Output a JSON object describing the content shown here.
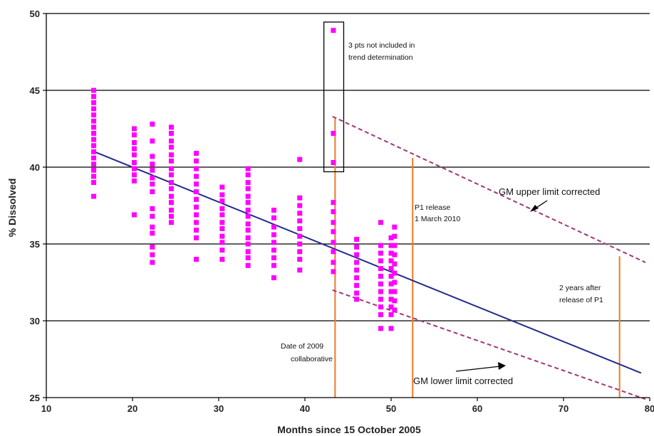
{
  "chart_data": {
    "type": "scatter",
    "title": "",
    "xlabel": "Months since  15 October 2005",
    "ylabel": "% Dissolved",
    "xlim": [
      10,
      80
    ],
    "ylim": [
      25,
      50
    ],
    "x_ticks": [
      "10",
      "20",
      "30",
      "40",
      "50",
      "60",
      "70",
      "80"
    ],
    "y_ticks": [
      "25",
      "30",
      "35",
      "40",
      "45",
      "50"
    ],
    "grid": "horizontal",
    "colors": {
      "points": "#ff00ff",
      "trend": "#1f2a8c",
      "dashed": "#a0357a",
      "markers": "#f07a24",
      "grid": "#000000"
    },
    "points": [
      [
        15.5,
        45.0
      ],
      [
        15.5,
        44.6
      ],
      [
        15.5,
        44.2
      ],
      [
        15.5,
        43.8
      ],
      [
        15.5,
        43.4
      ],
      [
        15.5,
        43.0
      ],
      [
        15.5,
        42.6
      ],
      [
        15.5,
        42.2
      ],
      [
        15.5,
        41.8
      ],
      [
        15.5,
        41.4
      ],
      [
        15.5,
        41.0
      ],
      [
        15.5,
        40.6
      ],
      [
        15.5,
        40.2
      ],
      [
        15.5,
        39.8
      ],
      [
        15.5,
        39.4
      ],
      [
        15.5,
        39.0
      ],
      [
        15.5,
        38.1
      ],
      [
        20.2,
        42.5
      ],
      [
        20.2,
        42.1
      ],
      [
        20.2,
        41.6
      ],
      [
        20.2,
        41.2
      ],
      [
        20.2,
        40.8
      ],
      [
        20.2,
        40.3
      ],
      [
        20.2,
        39.9
      ],
      [
        20.2,
        39.5
      ],
      [
        20.2,
        39.1
      ],
      [
        20.2,
        36.9
      ],
      [
        22.3,
        42.8
      ],
      [
        22.3,
        41.7
      ],
      [
        22.3,
        40.7
      ],
      [
        22.3,
        40.2
      ],
      [
        22.3,
        39.8
      ],
      [
        22.3,
        39.3
      ],
      [
        22.3,
        38.9
      ],
      [
        22.3,
        38.4
      ],
      [
        22.3,
        37.3
      ],
      [
        22.3,
        36.8
      ],
      [
        22.3,
        36.1
      ],
      [
        22.3,
        35.7
      ],
      [
        22.3,
        34.8
      ],
      [
        22.3,
        34.3
      ],
      [
        22.3,
        33.8
      ],
      [
        24.5,
        42.6
      ],
      [
        24.5,
        42.2
      ],
      [
        24.5,
        41.7
      ],
      [
        24.5,
        41.3
      ],
      [
        24.5,
        40.8
      ],
      [
        24.5,
        40.4
      ],
      [
        24.5,
        39.9
      ],
      [
        24.5,
        39.5
      ],
      [
        24.5,
        39.0
      ],
      [
        24.5,
        38.6
      ],
      [
        24.5,
        38.1
      ],
      [
        24.5,
        37.7
      ],
      [
        24.5,
        37.2
      ],
      [
        24.5,
        36.8
      ],
      [
        24.5,
        36.4
      ],
      [
        27.4,
        40.9
      ],
      [
        27.4,
        40.4
      ],
      [
        27.4,
        39.9
      ],
      [
        27.4,
        39.4
      ],
      [
        27.4,
        38.9
      ],
      [
        27.4,
        38.4
      ],
      [
        27.4,
        37.9
      ],
      [
        27.4,
        37.4
      ],
      [
        27.4,
        36.9
      ],
      [
        27.4,
        36.4
      ],
      [
        27.4,
        35.9
      ],
      [
        27.4,
        35.4
      ],
      [
        27.4,
        34.0
      ],
      [
        30.4,
        38.7
      ],
      [
        30.4,
        38.2
      ],
      [
        30.4,
        37.8
      ],
      [
        30.4,
        37.3
      ],
      [
        30.4,
        36.9
      ],
      [
        30.4,
        36.4
      ],
      [
        30.4,
        36.0
      ],
      [
        30.4,
        35.5
      ],
      [
        30.4,
        35.1
      ],
      [
        30.4,
        34.6
      ],
      [
        30.4,
        34.0
      ],
      [
        33.4,
        39.9
      ],
      [
        33.4,
        39.5
      ],
      [
        33.4,
        39.0
      ],
      [
        33.4,
        38.6
      ],
      [
        33.4,
        38.1
      ],
      [
        33.4,
        37.7
      ],
      [
        33.4,
        37.2
      ],
      [
        33.4,
        36.8
      ],
      [
        33.4,
        36.3
      ],
      [
        33.4,
        35.9
      ],
      [
        33.4,
        35.4
      ],
      [
        33.4,
        35.0
      ],
      [
        33.4,
        34.5
      ],
      [
        33.4,
        34.1
      ],
      [
        33.4,
        33.6
      ],
      [
        36.4,
        37.2
      ],
      [
        36.4,
        36.7
      ],
      [
        36.4,
        36.1
      ],
      [
        36.4,
        35.6
      ],
      [
        36.4,
        35.1
      ],
      [
        36.4,
        34.6
      ],
      [
        36.4,
        34.1
      ],
      [
        36.4,
        33.6
      ],
      [
        36.4,
        32.8
      ],
      [
        39.4,
        40.5
      ],
      [
        39.4,
        38.0
      ],
      [
        39.4,
        37.5
      ],
      [
        39.4,
        37.0
      ],
      [
        39.4,
        36.5
      ],
      [
        39.4,
        36.0
      ],
      [
        39.4,
        35.5
      ],
      [
        39.4,
        35.0
      ],
      [
        39.4,
        34.5
      ],
      [
        39.4,
        34.0
      ],
      [
        39.4,
        33.3
      ],
      [
        43.3,
        48.9
      ],
      [
        43.3,
        42.2
      ],
      [
        43.3,
        40.3
      ],
      [
        43.3,
        37.7
      ],
      [
        43.3,
        37.1
      ],
      [
        43.3,
        36.4
      ],
      [
        43.3,
        35.8
      ],
      [
        43.3,
        35.1
      ],
      [
        43.3,
        34.5
      ],
      [
        43.3,
        33.8
      ],
      [
        43.3,
        33.2
      ],
      [
        46.0,
        35.3
      ],
      [
        46.0,
        34.8
      ],
      [
        46.0,
        34.3
      ],
      [
        46.0,
        33.8
      ],
      [
        46.0,
        33.3
      ],
      [
        46.0,
        32.8
      ],
      [
        46.0,
        32.3
      ],
      [
        46.0,
        31.8
      ],
      [
        46.0,
        31.4
      ],
      [
        48.8,
        36.4
      ],
      [
        48.8,
        34.9
      ],
      [
        48.8,
        34.4
      ],
      [
        48.8,
        33.9
      ],
      [
        48.8,
        33.4
      ],
      [
        48.8,
        32.9
      ],
      [
        48.8,
        32.4
      ],
      [
        48.8,
        31.9
      ],
      [
        48.8,
        31.4
      ],
      [
        48.8,
        30.9
      ],
      [
        48.8,
        30.4
      ],
      [
        48.8,
        29.5
      ],
      [
        50.0,
        35.4
      ],
      [
        50.0,
        34.9
      ],
      [
        50.0,
        34.4
      ],
      [
        50.0,
        33.9
      ],
      [
        50.0,
        33.4
      ],
      [
        50.0,
        32.9
      ],
      [
        50.0,
        32.4
      ],
      [
        50.0,
        31.9
      ],
      [
        50.0,
        31.4
      ],
      [
        50.0,
        30.9
      ],
      [
        50.0,
        30.4
      ],
      [
        50.0,
        29.5
      ],
      [
        50.4,
        36.1
      ],
      [
        50.4,
        35.5
      ],
      [
        50.4,
        34.9
      ],
      [
        50.4,
        34.3
      ],
      [
        50.4,
        33.7
      ],
      [
        50.4,
        33.1
      ],
      [
        50.4,
        32.5
      ],
      [
        50.4,
        31.9
      ],
      [
        50.4,
        31.3
      ],
      [
        50.4,
        30.7
      ]
    ],
    "excluded_box": {
      "x": [
        42.2,
        44.5
      ],
      "y": [
        39.7,
        50.0
      ]
    },
    "lines": [
      {
        "id": "trend",
        "style": "solid",
        "points": [
          [
            15.6,
            41.0
          ],
          [
            79.0,
            26.6
          ]
        ]
      },
      {
        "id": "upper",
        "style": "dashed",
        "points": [
          [
            43.2,
            43.3
          ],
          [
            79.5,
            33.8
          ]
        ]
      },
      {
        "id": "lower",
        "style": "dashed",
        "points": [
          [
            43.2,
            32.0
          ],
          [
            79.5,
            24.9
          ]
        ]
      }
    ],
    "vertical_markers": [
      {
        "x": 43.5,
        "ymax": 43.2
      },
      {
        "x": 52.5,
        "ymax": 40.6
      },
      {
        "x": 76.5,
        "ymax": 34.2
      }
    ],
    "annotations": {
      "excluded": [
        "3 pts not included in",
        "trend determination"
      ],
      "p1_release": [
        "P1 release",
        "1 March 2010"
      ],
      "collaborative": [
        "Date of 2009",
        "collaborative"
      ],
      "two_years": [
        "2 years after",
        "release of P1"
      ],
      "upper_label": "GM upper limit corrected",
      "lower_label": "GM lower limit corrected"
    }
  }
}
